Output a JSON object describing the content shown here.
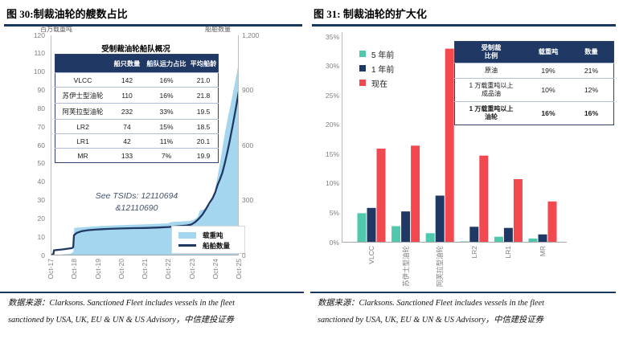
{
  "colors": {
    "navy": "#1F3864",
    "red": "#F1494F",
    "teal": "#4FC8AE",
    "lightblue": "#A4D7EF",
    "rule": "#17375E"
  },
  "figure30": {
    "title": "图 30:制裁油轮的艘数占比",
    "y_left_title": "百万载重吨",
    "y_right_title": "船舶数量",
    "table": {
      "title": "受制裁油轮船队概况",
      "headers": [
        "",
        "船只数量",
        "船队运力占比",
        "平均船龄"
      ],
      "rows": [
        [
          "VLCC",
          "142",
          "16%",
          "21.0"
        ],
        [
          "苏伊士型油轮",
          "110",
          "16%",
          "21.8"
        ],
        [
          "阿芙拉型油轮",
          "232",
          "33%",
          "19.5"
        ],
        [
          "LR2",
          "74",
          "15%",
          "18.5"
        ],
        [
          "LR1",
          "42",
          "11%",
          "20.1"
        ],
        [
          "MR",
          "133",
          "7%",
          "19.9"
        ]
      ]
    },
    "annotation_line1": "See TSIDs: 12110694",
    "annotation_line2": "&12110690",
    "source_line1": "数据来源：Clarksons. Sanctioned Fleet includes vessels in the fleet",
    "source_line2": "sanctioned by USA, UK, EU & UN & US Advisory，中信建投证券"
  },
  "figure31": {
    "title": "图 31: 制裁油轮的扩大化",
    "table": {
      "headers": [
        "受制裁\n比例",
        "载重吨",
        "数量"
      ],
      "rows": [
        {
          "label": "原油",
          "dwt": "19%",
          "count": "21%",
          "bold": false
        },
        {
          "label": "1 万载重吨以上\n成品油",
          "dwt": "10%",
          "count": "12%",
          "bold": false
        },
        {
          "label": "1 万载重吨以上\n油轮",
          "dwt": "16%",
          "count": "16%",
          "bold": true
        }
      ]
    },
    "source_line1": "数据来源：Clarksons. Sanctioned Fleet includes vessels in the fleet",
    "source_line2": "sanctioned by USA, UK, EU & UN & US Advisory，中信建投证券"
  },
  "chart_data": [
    {
      "type": "area",
      "title": "图 30:制裁油轮的艘数占比",
      "x_labels": [
        "Oct-17",
        "Oct-18",
        "Oct-19",
        "Oct-20",
        "Oct-21",
        "Oct-22",
        "Oct-23",
        "Oct-24",
        "Oct-25"
      ],
      "x_range_years": [
        0,
        8
      ],
      "y_left": {
        "label": "百万载重吨",
        "range": [
          0,
          120
        ],
        "ticks": [
          120,
          110,
          100,
          90,
          80,
          70,
          60,
          50,
          40,
          30,
          20,
          10,
          0
        ]
      },
      "y_right": {
        "label": "船舶数量",
        "range": [
          0,
          1200
        ],
        "ticks": [
          1200,
          900,
          600,
          300,
          0
        ],
        "tick_labels": [
          "1,200",
          "900",
          "600",
          "300",
          "0"
        ]
      },
      "series": [
        {
          "name": "载重吨",
          "type": "area",
          "axis": "left",
          "color": "#A4D7EF",
          "points": [
            [
              0,
              0
            ],
            [
              0.85,
              1
            ],
            [
              0.97,
              2
            ],
            [
              1,
              15
            ],
            [
              2,
              16
            ],
            [
              3,
              16.5
            ],
            [
              4,
              17
            ],
            [
              5,
              17.5
            ],
            [
              5.15,
              18.3
            ],
            [
              5.9,
              18.8
            ],
            [
              6.1,
              19.5
            ],
            [
              6.25,
              21
            ],
            [
              6.35,
              24.5
            ],
            [
              6.6,
              25.5
            ],
            [
              6.8,
              28
            ],
            [
              6.95,
              33
            ],
            [
              7.1,
              43
            ],
            [
              7.25,
              54
            ],
            [
              7.4,
              66
            ],
            [
              7.55,
              76
            ],
            [
              7.7,
              85
            ],
            [
              7.85,
              95
            ],
            [
              8,
              105
            ]
          ]
        },
        {
          "name": "船舶数量",
          "type": "line",
          "axis": "right",
          "color": "#1F3864",
          "points": [
            [
              0,
              0
            ],
            [
              0.12,
              8
            ],
            [
              0.14,
              28
            ],
            [
              0.5,
              33
            ],
            [
              0.9,
              40
            ],
            [
              0.96,
              45
            ],
            [
              0.99,
              110
            ],
            [
              1.1,
              122
            ],
            [
              1.3,
              132
            ],
            [
              1.6,
              138
            ],
            [
              2,
              142
            ],
            [
              2.5,
              145
            ],
            [
              3,
              147
            ],
            [
              3.5,
              149
            ],
            [
              4,
              150
            ],
            [
              4.5,
              152
            ],
            [
              5,
              155
            ],
            [
              5.4,
              159
            ],
            [
              5.8,
              164
            ],
            [
              6,
              170
            ],
            [
              6.15,
              182
            ],
            [
              6.3,
              200
            ],
            [
              6.45,
              222
            ],
            [
              6.6,
              252
            ],
            [
              6.75,
              285
            ],
            [
              6.9,
              315
            ],
            [
              7,
              345
            ],
            [
              7.1,
              385
            ],
            [
              7.2,
              415
            ],
            [
              7.3,
              450
            ],
            [
              7.4,
              500
            ],
            [
              7.5,
              555
            ],
            [
              7.6,
              615
            ],
            [
              7.7,
              680
            ],
            [
              7.8,
              750
            ],
            [
              7.9,
              820
            ],
            [
              8,
              893
            ]
          ]
        }
      ],
      "legend_position": "bottom-right"
    },
    {
      "type": "bar",
      "title": "图 31: 制裁油轮的扩大化",
      "categories": [
        "VLCC",
        "苏伊士型油轮",
        "阿芙拉型油轮",
        "LR2",
        "LR1",
        "MR"
      ],
      "series": [
        {
          "name": "5 年前",
          "color": "#4FC8AE",
          "values": [
            5.0,
            2.8,
            1.6,
            0.2,
            1.0,
            0.7
          ]
        },
        {
          "name": "1 年前",
          "color": "#1F3864",
          "values": [
            5.9,
            5.3,
            8.0,
            2.7,
            2.5,
            1.4
          ]
        },
        {
          "name": "现在",
          "color": "#F1494F",
          "values": [
            16.0,
            16.5,
            33.0,
            14.8,
            10.8,
            7.0
          ]
        }
      ],
      "ylim": [
        0,
        35
      ],
      "y_ticks": [
        0,
        5,
        10,
        15,
        20,
        25,
        30,
        35
      ],
      "y_tick_labels": [
        "0%",
        "5%",
        "10%",
        "15%",
        "20%",
        "25%",
        "30%",
        "35%"
      ],
      "legend_position": "top-left"
    }
  ]
}
